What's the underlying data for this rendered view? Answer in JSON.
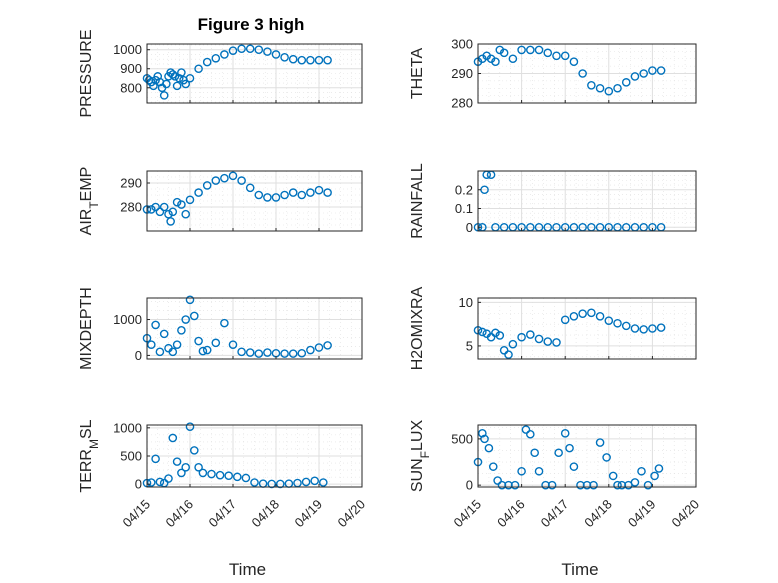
{
  "figure": {
    "title": "Figure 3 high"
  },
  "chart_data": [
    {
      "type": "scatter",
      "ylabel": "PRESSURE",
      "xlabel": "",
      "title": "Figure 3 high",
      "ylim": [
        720,
        1030
      ],
      "yticks": [
        800,
        900,
        1000
      ],
      "grid": true,
      "xlim": [
        0,
        5
      ],
      "xticklabels": [],
      "x": [
        0.0,
        0.05,
        0.1,
        0.15,
        0.2,
        0.25,
        0.3,
        0.35,
        0.4,
        0.45,
        0.5,
        0.55,
        0.6,
        0.65,
        0.7,
        0.75,
        0.8,
        0.85,
        0.9,
        1.0,
        1.2,
        1.4,
        1.6,
        1.8,
        2.0,
        2.2,
        2.4,
        2.6,
        2.8,
        3.0,
        3.2,
        3.4,
        3.6,
        3.8,
        4.0,
        4.2
      ],
      "values": [
        850,
        840,
        830,
        810,
        840,
        860,
        830,
        800,
        760,
        820,
        860,
        880,
        870,
        860,
        810,
        850,
        880,
        840,
        820,
        850,
        900,
        935,
        955,
        975,
        995,
        1005,
        1005,
        1000,
        990,
        975,
        960,
        950,
        945,
        945,
        945,
        945
      ]
    },
    {
      "type": "scatter",
      "ylabel": "THETA",
      "xlabel": "",
      "ylim": [
        280,
        300
      ],
      "yticks": [
        280,
        290,
        300
      ],
      "grid": true,
      "xlim": [
        0,
        5
      ],
      "xticklabels": [],
      "x": [
        0.0,
        0.1,
        0.2,
        0.3,
        0.4,
        0.5,
        0.6,
        0.8,
        1.0,
        1.2,
        1.4,
        1.6,
        1.8,
        2.0,
        2.2,
        2.4,
        2.6,
        2.8,
        3.0,
        3.2,
        3.4,
        3.6,
        3.8,
        4.0,
        4.2
      ],
      "values": [
        294,
        295,
        296,
        295,
        294,
        298,
        297,
        295,
        298,
        298,
        298,
        297,
        296,
        296,
        294,
        290,
        286,
        285,
        284,
        285,
        287,
        289,
        290,
        291,
        291
      ]
    },
    {
      "type": "scatter",
      "ylabel": "AIR_TEMP",
      "xlabel": "",
      "ylim": [
        270,
        295
      ],
      "yticks": [
        280,
        290
      ],
      "grid": true,
      "xlim": [
        0,
        5
      ],
      "xticklabels": [],
      "x": [
        0.0,
        0.1,
        0.2,
        0.3,
        0.4,
        0.5,
        0.55,
        0.6,
        0.7,
        0.8,
        0.9,
        1.0,
        1.2,
        1.4,
        1.6,
        1.8,
        2.0,
        2.2,
        2.4,
        2.6,
        2.8,
        3.0,
        3.2,
        3.4,
        3.6,
        3.8,
        4.0,
        4.2
      ],
      "values": [
        279,
        279,
        280,
        278,
        280,
        277,
        274,
        278,
        282,
        281,
        277,
        283,
        286,
        289,
        291,
        292,
        293,
        291,
        288,
        285,
        284,
        284,
        285,
        286,
        285,
        286,
        287,
        286
      ]
    },
    {
      "type": "scatter",
      "ylabel": "RAINFALL",
      "xlabel": "",
      "ylim": [
        -0.02,
        0.3
      ],
      "yticks": [
        0,
        0.1,
        0.2
      ],
      "grid": true,
      "xlim": [
        0,
        5
      ],
      "xticklabels": [],
      "x": [
        0.0,
        0.1,
        0.15,
        0.2,
        0.3,
        0.4,
        0.6,
        0.8,
        1.0,
        1.2,
        1.4,
        1.6,
        1.8,
        2.0,
        2.2,
        2.4,
        2.6,
        2.8,
        3.0,
        3.2,
        3.4,
        3.6,
        3.8,
        4.0,
        4.2
      ],
      "values": [
        0,
        0.0,
        0.2,
        0.28,
        0.28,
        0,
        0,
        0,
        0,
        0,
        0,
        0,
        0,
        0,
        0,
        0,
        0,
        0,
        0,
        0,
        0,
        0,
        0,
        0,
        0
      ]
    },
    {
      "type": "scatter",
      "ylabel": "MIXDEPTH",
      "xlabel": "",
      "ylim": [
        -100,
        1600
      ],
      "yticks": [
        0,
        1000
      ],
      "grid": true,
      "xlim": [
        0,
        5
      ],
      "xticklabels": [],
      "x": [
        0.0,
        0.1,
        0.2,
        0.3,
        0.4,
        0.5,
        0.6,
        0.7,
        0.8,
        0.9,
        1.0,
        1.1,
        1.2,
        1.3,
        1.4,
        1.6,
        1.8,
        2.0,
        2.2,
        2.4,
        2.6,
        2.8,
        3.0,
        3.2,
        3.4,
        3.6,
        3.8,
        4.0,
        4.2
      ],
      "values": [
        480,
        300,
        850,
        100,
        600,
        200,
        100,
        300,
        700,
        1000,
        1550,
        1100,
        400,
        120,
        150,
        350,
        900,
        300,
        100,
        80,
        50,
        80,
        60,
        50,
        50,
        60,
        150,
        220,
        280
      ]
    },
    {
      "type": "scatter",
      "ylabel": "H2OMIXRA",
      "xlabel": "",
      "ylim": [
        3.5,
        10.5
      ],
      "yticks": [
        5,
        10
      ],
      "grid": true,
      "xlim": [
        0,
        5
      ],
      "xticklabels": [],
      "x": [
        0.0,
        0.1,
        0.2,
        0.3,
        0.4,
        0.5,
        0.6,
        0.7,
        0.8,
        1.0,
        1.2,
        1.4,
        1.6,
        1.8,
        2.0,
        2.2,
        2.4,
        2.6,
        2.8,
        3.0,
        3.2,
        3.4,
        3.6,
        3.8,
        4.0,
        4.2
      ],
      "values": [
        6.8,
        6.6,
        6.4,
        6.0,
        6.5,
        6.2,
        4.5,
        4.0,
        5.2,
        6.0,
        6.3,
        5.8,
        5.5,
        5.4,
        8.0,
        8.4,
        8.7,
        8.8,
        8.4,
        7.9,
        7.6,
        7.3,
        7.0,
        6.9,
        7.0,
        7.1
      ]
    },
    {
      "type": "scatter",
      "ylabel": "TERR_MSL",
      "xlabel": "Time",
      "ylim": [
        -50,
        1050
      ],
      "yticks": [
        0,
        500,
        1000
      ],
      "grid": true,
      "xlim": [
        0,
        5
      ],
      "xticklabels": [
        "04/15",
        "04/16",
        "04/17",
        "04/18",
        "04/19",
        "04/20"
      ],
      "x": [
        0.0,
        0.1,
        0.2,
        0.3,
        0.4,
        0.5,
        0.6,
        0.7,
        0.8,
        0.9,
        1.0,
        1.1,
        1.2,
        1.3,
        1.5,
        1.7,
        1.9,
        2.1,
        2.3,
        2.5,
        2.7,
        2.9,
        3.1,
        3.3,
        3.5,
        3.7,
        3.9,
        4.1
      ],
      "values": [
        20,
        30,
        450,
        40,
        20,
        100,
        820,
        400,
        200,
        300,
        1020,
        600,
        300,
        200,
        180,
        160,
        150,
        130,
        110,
        30,
        10,
        5,
        5,
        10,
        20,
        40,
        60,
        30
      ]
    },
    {
      "type": "scatter",
      "ylabel": "SUN_FLUX",
      "xlabel": "Time",
      "ylim": [
        -20,
        650
      ],
      "yticks": [
        0,
        500
      ],
      "grid": true,
      "xlim": [
        0,
        5
      ],
      "xticklabels": [
        "04/15",
        "04/16",
        "04/17",
        "04/18",
        "04/19",
        "04/20"
      ],
      "x": [
        0.0,
        0.1,
        0.15,
        0.25,
        0.35,
        0.45,
        0.55,
        0.7,
        0.85,
        1.0,
        1.1,
        1.2,
        1.3,
        1.4,
        1.55,
        1.7,
        1.85,
        2.0,
        2.1,
        2.2,
        2.35,
        2.5,
        2.65,
        2.8,
        2.95,
        3.1,
        3.2,
        3.3,
        3.45,
        3.6,
        3.75,
        3.9,
        4.05,
        4.15
      ],
      "values": [
        250,
        560,
        500,
        400,
        200,
        50,
        0,
        0,
        0,
        150,
        600,
        550,
        350,
        150,
        0,
        0,
        350,
        560,
        400,
        200,
        0,
        0,
        0,
        460,
        300,
        100,
        0,
        0,
        0,
        30,
        150,
        0,
        100,
        180
      ]
    }
  ],
  "colors": {
    "marker": "#0072BD",
    "axis": "#262626",
    "grid": "#dfdfdf"
  }
}
